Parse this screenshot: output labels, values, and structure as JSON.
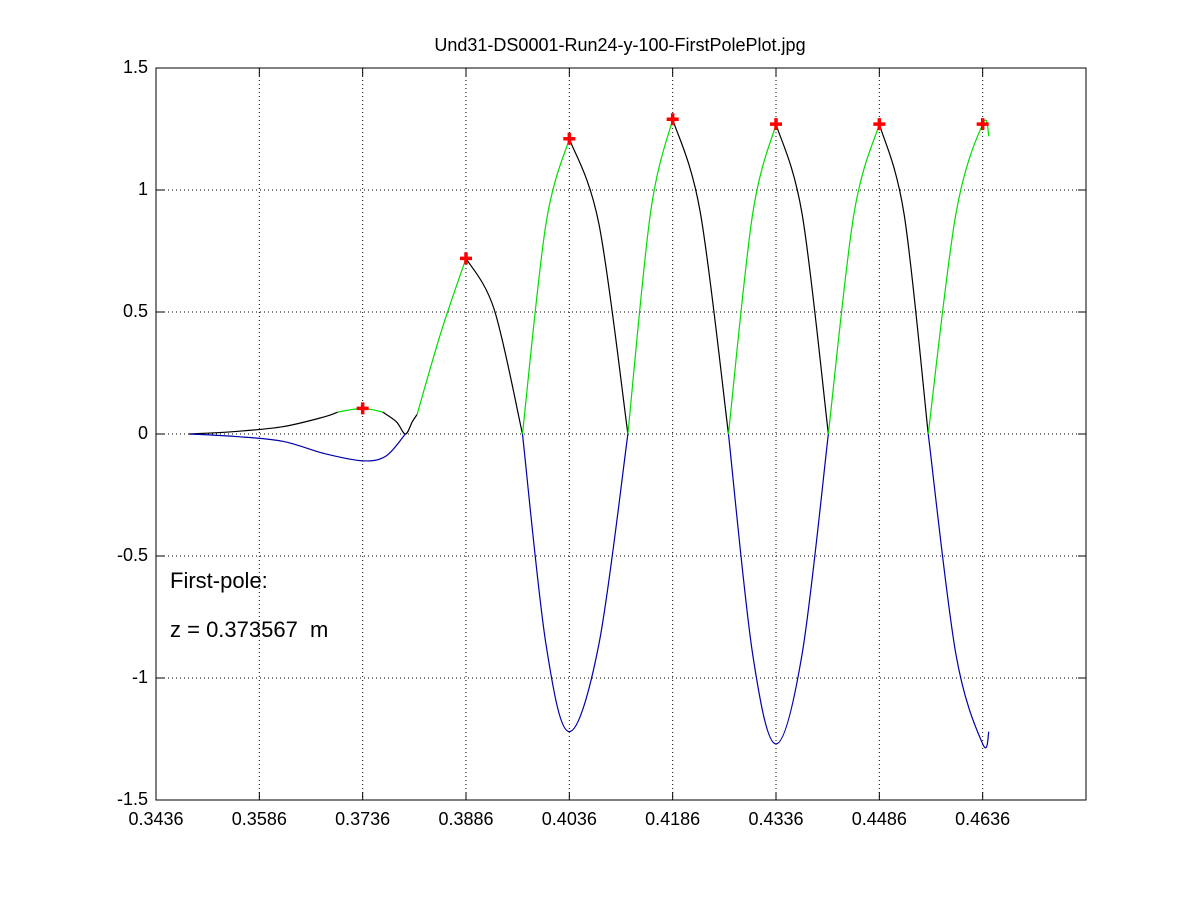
{
  "chart_data": {
    "type": "line",
    "title": "Und31-DS0001-Run24-y-100-FirstPolePlot.jpg",
    "annotations": [
      "First-pole:",
      "z = 0.373567  m"
    ],
    "xlim": [
      0.3436,
      0.4786
    ],
    "ylim": [
      -1.5,
      1.5
    ],
    "xticks": [
      0.3436,
      0.3586,
      0.3736,
      0.3886,
      0.4036,
      0.4186,
      0.4336,
      0.4486,
      0.4636
    ],
    "yticks": [
      -1.5,
      -1,
      -0.5,
      0,
      0.5,
      1,
      1.5
    ],
    "grid": true,
    "series": [
      {
        "color": "#000000",
        "style": "line",
        "x": [
          0.3484,
          0.355,
          0.362,
          0.368,
          0.37,
          null,
          0.3765,
          0.3785,
          0.3798,
          0.3808,
          0.3815,
          null,
          0.3886,
          0.3927,
          0.3968,
          null,
          0.4036,
          0.4079,
          0.4121,
          null,
          0.4186,
          0.4226,
          0.4267,
          null,
          0.4336,
          0.4374,
          0.4412,
          null,
          0.4486,
          0.4522,
          0.4557
        ],
        "values": [
          0,
          0.01,
          0.03,
          0.07,
          0.09,
          null,
          0.09,
          0.05,
          0,
          0.05,
          0.08,
          null,
          0.72,
          0.51,
          0,
          null,
          1.21,
          0.86,
          0,
          null,
          1.29,
          0.91,
          0,
          null,
          1.27,
          0.9,
          0,
          null,
          1.27,
          0.9,
          0
        ]
      },
      {
        "color": "#00dd00",
        "style": "line",
        "x": [
          0.37,
          0.3736,
          0.3765,
          null,
          0.3815,
          0.385,
          0.3886,
          null,
          0.3968,
          0.4002,
          0.4036,
          null,
          0.4121,
          0.4154,
          0.4186,
          null,
          0.4267,
          0.4302,
          0.4336,
          null,
          0.4412,
          0.4449,
          0.4486,
          null,
          0.4557,
          0.4597,
          0.4636,
          0.4645
        ],
        "values": [
          0.09,
          0.105,
          0.09,
          null,
          0.08,
          0.42,
          0.72,
          null,
          0,
          0.86,
          1.21,
          null,
          0,
          0.91,
          1.29,
          null,
          0,
          0.9,
          1.27,
          null,
          0,
          0.9,
          1.27,
          null,
          0,
          0.9,
          1.27,
          1.22
        ]
      },
      {
        "color": "#0000aa",
        "style": "line",
        "x": [
          0.3484,
          0.355,
          0.362,
          0.368,
          0.3736,
          0.377,
          0.3798,
          null,
          0.3968,
          0.4002,
          0.4036,
          0.4079,
          0.4121,
          null,
          0.4267,
          0.4302,
          0.4336,
          0.4374,
          0.4412,
          null,
          0.4557,
          0.4597,
          0.4636,
          0.4645
        ],
        "values": [
          0,
          -0.01,
          -0.03,
          -0.08,
          -0.11,
          -0.09,
          0,
          null,
          0,
          -0.86,
          -1.22,
          -0.86,
          0,
          null,
          0,
          -0.9,
          -1.27,
          -0.9,
          0,
          null,
          0,
          -0.9,
          -1.27,
          -1.22
        ]
      },
      {
        "color": "#ff0000",
        "style": "plus",
        "x": [
          0.3736,
          0.3886,
          0.4036,
          0.4186,
          0.4336,
          0.4486,
          0.4636
        ],
        "values": [
          0.105,
          0.72,
          1.21,
          1.29,
          1.27,
          1.27,
          1.27
        ]
      }
    ]
  }
}
